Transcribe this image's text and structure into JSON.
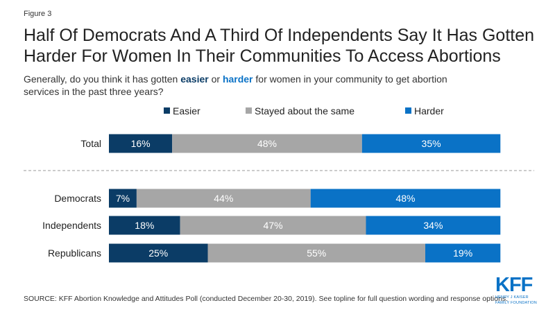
{
  "figure_label": "Figure 3",
  "title": "Half Of Democrats And A Third Of Independents Say It Has Gotten Harder For Women In Their Communities To Access Abortions",
  "subtitle": {
    "part1": "Generally, do you think it has gotten ",
    "easier": "easier",
    "part2": " or ",
    "harder": "harder",
    "part3": " for women in your community to get abortion services in the past three years?"
  },
  "colors": {
    "easier": "#0b3c66",
    "same": "#a6a6a6",
    "harder": "#0a72c6",
    "divider": "#9a9a9a"
  },
  "chart_data": {
    "type": "bar",
    "orientation": "horizontal",
    "stacked": true,
    "categories": [
      "Total",
      "Democrats",
      "Independents",
      "Republicans"
    ],
    "series": [
      {
        "name": "Easier",
        "values": [
          16,
          7,
          18,
          25
        ],
        "labels": [
          "16%",
          "7%",
          "18%",
          "25%"
        ]
      },
      {
        "name": "Stayed about the same",
        "values": [
          48,
          44,
          47,
          55
        ],
        "labels": [
          "48%",
          "44%",
          "47%",
          "55%"
        ]
      },
      {
        "name": "Harder",
        "values": [
          35,
          48,
          34,
          19
        ],
        "labels": [
          "35%",
          "48%",
          "34%",
          "19%"
        ]
      }
    ],
    "xlim": [
      0,
      100
    ],
    "legend_position": "top",
    "grid": false
  },
  "source": "SOURCE: KFF Abortion Knowledge and Attitudes Poll (conducted December 20-30, 2019). See topline for full question wording and response options.",
  "logo": {
    "main": "KFF",
    "line1": "HENRY J KAISER",
    "line2": "FAMILY FOUNDATION"
  }
}
